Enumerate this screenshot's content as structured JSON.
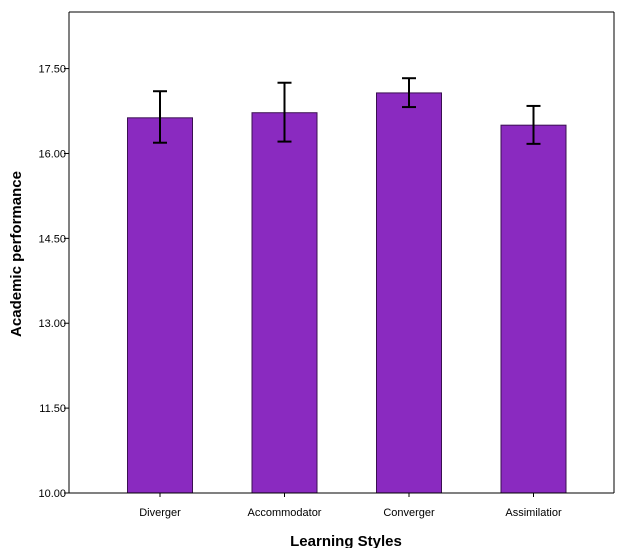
{
  "chart_data": {
    "type": "bar",
    "title": "",
    "xlabel": "Learning Styles",
    "ylabel": "Academic performance",
    "categories": [
      "Diverger",
      "Accommodator",
      "Converger",
      "Assimilatior"
    ],
    "values": [
      16.63,
      16.72,
      17.07,
      16.5
    ],
    "error_low": [
      16.19,
      16.21,
      16.82,
      16.17
    ],
    "error_high": [
      17.1,
      17.25,
      17.33,
      16.84
    ],
    "ylim": [
      10.0,
      18.5
    ],
    "yticks": [
      "10.00",
      "11.50",
      "13.00",
      "14.50",
      "16.00",
      "17.50"
    ],
    "bar_color": "#8a2ac0",
    "bar_edge_color": "#3a1050",
    "error_bar_color": "#000000",
    "grid": false,
    "legend": "none"
  }
}
